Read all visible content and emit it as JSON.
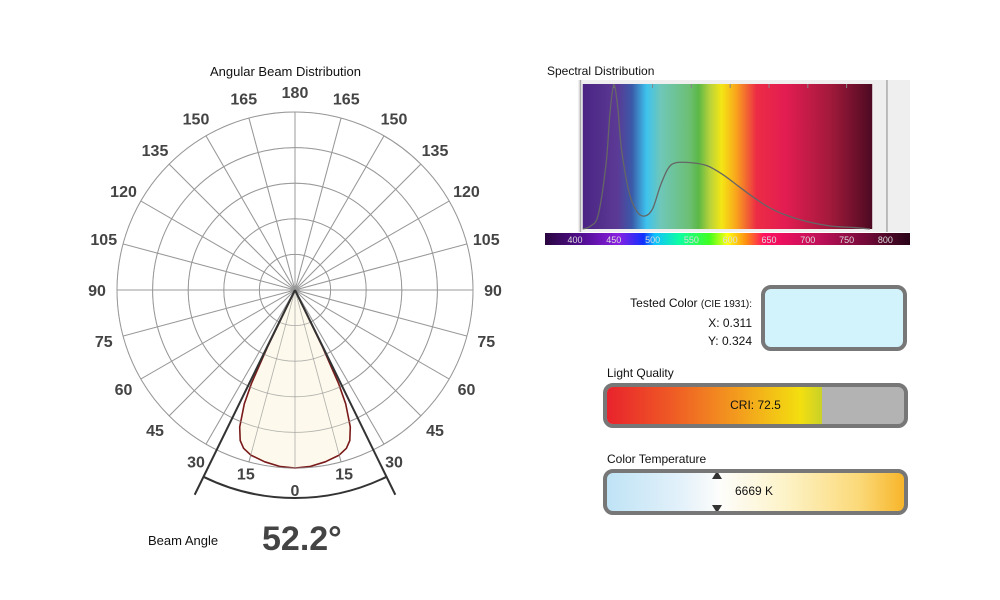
{
  "polar": {
    "title": "Angular Beam Distribution",
    "angle_labels_left": [
      "0",
      "15",
      "30",
      "45",
      "60",
      "75",
      "90",
      "105",
      "120",
      "135",
      "150",
      "165",
      "180"
    ],
    "angle_labels_right": [
      "15",
      "30",
      "45",
      "60",
      "75",
      "90",
      "105",
      "120",
      "135",
      "150",
      "165"
    ],
    "beam_angle_label": "Beam Angle",
    "beam_angle_value": "52.2°",
    "colors": {
      "curve": "#7a1a1a",
      "fill": "#fdf9ea",
      "grid": "#999999"
    }
  },
  "chart_data": [
    {
      "type": "line",
      "subtype": "polar",
      "title": "Angular Beam Distribution",
      "theta_ticks_deg": [
        0,
        15,
        30,
        45,
        60,
        75,
        90,
        105,
        120,
        135,
        150,
        165,
        180
      ],
      "beam_angle_deg": 52.2,
      "relative_intensity": {
        "angle_deg": [
          0,
          5,
          10,
          15,
          18,
          20,
          22,
          24,
          25,
          25.8,
          26.1
        ],
        "value": [
          1.0,
          0.995,
          0.98,
          0.96,
          0.935,
          0.9,
          0.83,
          0.7,
          0.58,
          0.35,
          0.0
        ]
      },
      "grid": true
    },
    {
      "type": "line",
      "title": "Spectral Distribution",
      "x_ticks": [
        "400",
        "450",
        "500",
        "550",
        "600",
        "650",
        "700",
        "750",
        "800"
      ],
      "xlim": [
        400,
        800
      ],
      "x": [
        410,
        420,
        430,
        440,
        445,
        450,
        455,
        460,
        470,
        480,
        490,
        500,
        510,
        520,
        530,
        550,
        570,
        590,
        610,
        630,
        650,
        670,
        700,
        730,
        760,
        780
      ],
      "y": [
        0.0,
        0.02,
        0.1,
        0.45,
        0.8,
        1.0,
        0.85,
        0.55,
        0.25,
        0.12,
        0.09,
        0.14,
        0.3,
        0.42,
        0.46,
        0.46,
        0.44,
        0.38,
        0.3,
        0.22,
        0.15,
        0.1,
        0.05,
        0.02,
        0.01,
        0.0
      ],
      "grid": true
    }
  ],
  "tested_color": {
    "label": "Tested Color",
    "label_suffix": "(CIE 1931):",
    "x": "X: 0.311",
    "y": "Y: 0.324",
    "swatch_color": "#d2f3fb"
  },
  "light_quality": {
    "label": "Light Quality",
    "value_text": "CRI: 72.5",
    "cri_percent": 72.5
  },
  "color_temperature": {
    "label": "Color Temperature",
    "value_text": "6669 K",
    "marker_fraction": 0.37
  }
}
